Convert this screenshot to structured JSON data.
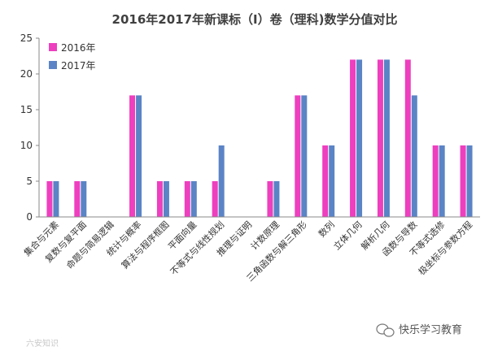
{
  "chart_data": {
    "type": "bar",
    "title": "2016年2017年新课标（Ⅰ）卷（理科)数学分值对比",
    "categories": [
      "集合与元素",
      "复数与复平面",
      "命题与简易逻辑",
      "统计与概率",
      "算法与程序框图",
      "平面向量",
      "不等式与线性规划",
      "推理与证明",
      "计数原理",
      "三角函数与解三角形",
      "数列",
      "立体几何",
      "解析几何",
      "函数与导数",
      "不等式选修",
      "极坐标与参数方程"
    ],
    "series": [
      {
        "name": "2016年",
        "color": "#ee3fbf",
        "values": [
          5,
          5,
          0,
          17,
          5,
          5,
          5,
          0,
          5,
          17,
          10,
          22,
          22,
          22,
          10,
          10
        ]
      },
      {
        "name": "2017年",
        "color": "#5b84c6",
        "values": [
          5,
          5,
          0,
          17,
          5,
          5,
          10,
          0,
          5,
          17,
          10,
          22,
          22,
          17,
          10,
          10
        ]
      }
    ],
    "ylim": [
      0,
      25
    ],
    "yticks": [
      0,
      5,
      10,
      15,
      20,
      25
    ],
    "grid": false,
    "legend": "top-left",
    "xlabel": "",
    "ylabel": ""
  },
  "watermark": "六安知识",
  "brand": "快乐学习教育",
  "brand_icon": "wechat-icon"
}
